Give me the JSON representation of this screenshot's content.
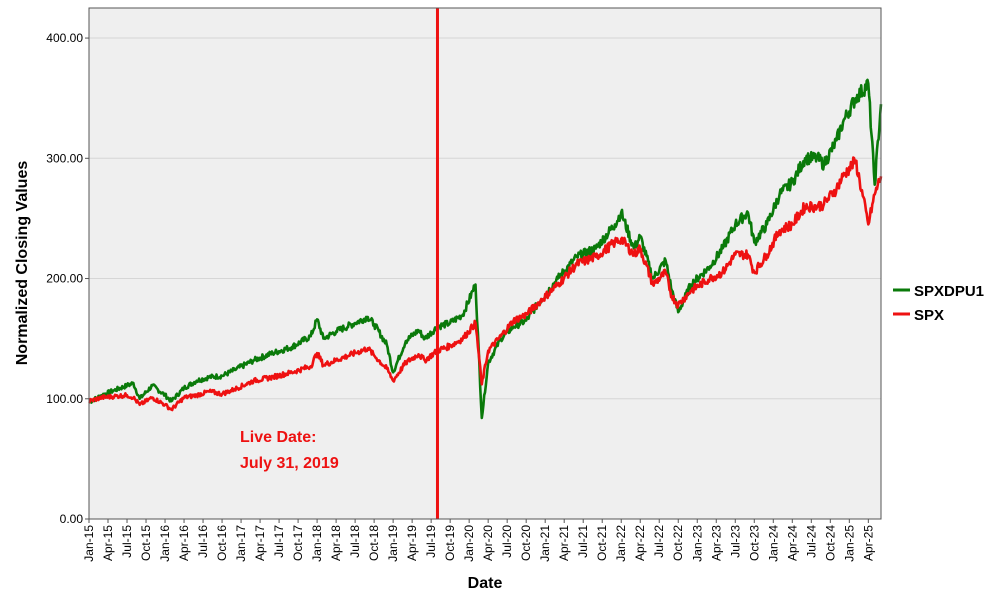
{
  "chart_data": {
    "type": "line",
    "title": "",
    "xlabel": "Date",
    "ylabel": "Normalized Closing Values",
    "ylim": [
      0,
      425
    ],
    "y_ticks": [
      0,
      100,
      200,
      300,
      400
    ],
    "y_tick_labels": [
      "0.00",
      "100.00",
      "200.00",
      "300.00",
      "400.00"
    ],
    "x_range": [
      "2015-01",
      "2025-06"
    ],
    "x_tick_labels": [
      "Jan-15",
      "Apr-15",
      "Jul-15",
      "Oct-15",
      "Jan-16",
      "Apr-16",
      "Jul-16",
      "Oct-16",
      "Jan-17",
      "Apr-17",
      "Jul-17",
      "Oct-17",
      "Jan-18",
      "Apr-18",
      "Jul-18",
      "Oct-18",
      "Jan-19",
      "Apr-19",
      "Jul-19",
      "Oct-19",
      "Jan-20",
      "Apr-20",
      "Jul-20",
      "Oct-20",
      "Jan-21",
      "Apr-21",
      "Jul-21",
      "Oct-21",
      "Jan-22",
      "Apr-22",
      "Jul-22",
      "Oct-22",
      "Jan-23",
      "Apr-23",
      "Jul-23",
      "Oct-23",
      "Jan-24",
      "Apr-24",
      "Jul-24",
      "Oct-24",
      "Jan-25",
      "Apr-25"
    ],
    "grid": "horizontal",
    "legend": "right",
    "series": [
      {
        "name": "SPXDPU1",
        "color": "#0a7a0a",
        "x": [
          "2015-01",
          "2015-03",
          "2015-05",
          "2015-07",
          "2015-08",
          "2015-09",
          "2015-11",
          "2016-01",
          "2016-02",
          "2016-04",
          "2016-06",
          "2016-08",
          "2016-10",
          "2016-12",
          "2017-03",
          "2017-06",
          "2017-09",
          "2017-12",
          "2018-01",
          "2018-02",
          "2018-04",
          "2018-07",
          "2018-09",
          "2018-10",
          "2018-12",
          "2019-01",
          "2019-03",
          "2019-05",
          "2019-06",
          "2019-08",
          "2019-10",
          "2019-12",
          "2020-02",
          "2020-03",
          "2020-04",
          "2020-06",
          "2020-08",
          "2020-10",
          "2020-12",
          "2021-03",
          "2021-06",
          "2021-09",
          "2021-12",
          "2022-01",
          "2022-03",
          "2022-04",
          "2022-06",
          "2022-08",
          "2022-09",
          "2022-10",
          "2022-12",
          "2023-03",
          "2023-05",
          "2023-07",
          "2023-09",
          "2023-10",
          "2023-12",
          "2024-02",
          "2024-04",
          "2024-06",
          "2024-08",
          "2024-09",
          "2024-11",
          "2024-12",
          "2025-02",
          "2025-04",
          "2025-05",
          "2025-06"
        ],
        "values": [
          97,
          103,
          107,
          111,
          113,
          100,
          111,
          103,
          98,
          109,
          115,
          118,
          119,
          124,
          132,
          138,
          143,
          152,
          166,
          150,
          156,
          163,
          168,
          162,
          145,
          122,
          148,
          157,
          150,
          160,
          163,
          170,
          195,
          84,
          130,
          150,
          160,
          165,
          180,
          200,
          218,
          225,
          245,
          255,
          225,
          235,
          200,
          215,
          190,
          172,
          195,
          210,
          225,
          245,
          255,
          230,
          245,
          270,
          280,
          300,
          300,
          295,
          315,
          330,
          350,
          362,
          278,
          345
        ]
      },
      {
        "name": "SPX",
        "color": "#ee1111",
        "x": [
          "2015-01",
          "2015-03",
          "2015-05",
          "2015-07",
          "2015-08",
          "2015-09",
          "2015-11",
          "2016-01",
          "2016-02",
          "2016-04",
          "2016-06",
          "2016-08",
          "2016-10",
          "2016-12",
          "2017-03",
          "2017-06",
          "2017-09",
          "2017-12",
          "2018-01",
          "2018-02",
          "2018-04",
          "2018-07",
          "2018-09",
          "2018-10",
          "2018-12",
          "2019-01",
          "2019-03",
          "2019-05",
          "2019-06",
          "2019-08",
          "2019-10",
          "2019-12",
          "2020-02",
          "2020-03",
          "2020-04",
          "2020-06",
          "2020-08",
          "2020-10",
          "2020-12",
          "2021-03",
          "2021-06",
          "2021-09",
          "2021-12",
          "2022-01",
          "2022-03",
          "2022-04",
          "2022-06",
          "2022-08",
          "2022-09",
          "2022-10",
          "2022-12",
          "2023-03",
          "2023-05",
          "2023-07",
          "2023-09",
          "2023-10",
          "2023-12",
          "2024-02",
          "2024-04",
          "2024-06",
          "2024-08",
          "2024-09",
          "2024-11",
          "2024-12",
          "2025-02",
          "2025-04",
          "2025-05",
          "2025-06"
        ],
        "values": [
          98,
          101,
          102,
          103,
          101,
          95,
          101,
          95,
          91,
          101,
          103,
          106,
          104,
          108,
          115,
          118,
          122,
          127,
          138,
          128,
          132,
          138,
          142,
          136,
          125,
          115,
          130,
          137,
          132,
          140,
          144,
          150,
          163,
          112,
          140,
          152,
          165,
          170,
          180,
          195,
          212,
          218,
          230,
          233,
          220,
          225,
          195,
          205,
          185,
          178,
          190,
          200,
          205,
          220,
          220,
          205,
          220,
          240,
          245,
          260,
          260,
          262,
          275,
          285,
          298,
          245,
          270,
          285
        ]
      }
    ],
    "annotations": [
      {
        "type": "vertical-line",
        "x": "2019-07-31",
        "color": "#ee1111"
      },
      {
        "type": "text",
        "lines": [
          "Live Date:",
          "July 31, 2019"
        ],
        "color": "#ee1111"
      }
    ]
  }
}
